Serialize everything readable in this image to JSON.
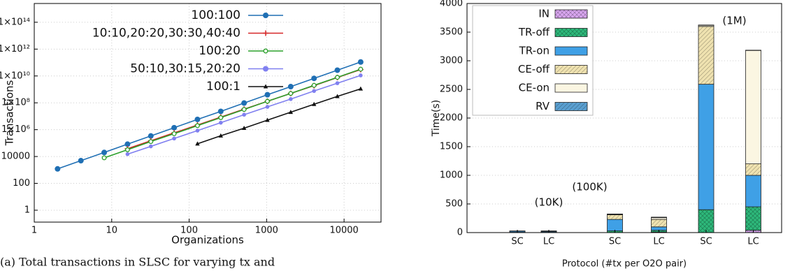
{
  "chart_data": [
    {
      "type": "line",
      "log_x": true,
      "log_y": true,
      "grid": true,
      "x_label": "Organizations",
      "y_label": "Transactions",
      "caption": "(a) Total transactions in SLSC for varying tx and",
      "xlim": [
        1,
        30000
      ],
      "xticks": [
        1,
        10,
        100,
        1000,
        10000
      ],
      "ylim": [
        0.13,
        2500000000000000.0
      ],
      "yticks": [
        1,
        100,
        10000,
        {
          "value": 1000000,
          "label": "1×10⁶"
        },
        {
          "value": 100000000,
          "label": "1×10⁸"
        },
        {
          "value": 10000000000,
          "label": "1×10¹⁰"
        },
        {
          "value": 1000000000000,
          "label": "1×10¹²"
        },
        {
          "value": 100000000000000,
          "label": "1×10¹⁴"
        }
      ],
      "series": [
        {
          "name": "100:100",
          "color": "#1f6fb4",
          "marker": "dot",
          "x": [
            2,
            4,
            8,
            16,
            32,
            64,
            128,
            256,
            512,
            1024,
            2048,
            4096,
            8192,
            16384
          ],
          "values": [
            1200,
            4900,
            20000,
            83000,
            340000,
            1400000,
            5800000,
            23000000,
            96000000,
            400000000,
            1600000000,
            6600000000,
            27000000000,
            110000000000
          ]
        },
        {
          "name": "10:10,20:20,30:30,40:40",
          "color": "#d62728",
          "marker": "plus",
          "x": [
            16,
            32,
            64,
            128,
            256,
            512,
            1024,
            2048,
            4096,
            8192,
            16384
          ],
          "values": [
            38000,
            150000,
            580000,
            2200000,
            8700000,
            34000000,
            130000000,
            500000000,
            1900000000,
            7600000000,
            30000000000
          ]
        },
        {
          "name": "100:20",
          "color": "#2ca02c",
          "marker": "ring",
          "x": [
            8,
            16,
            32,
            64,
            128,
            256,
            512,
            1024,
            2048,
            4096,
            8192,
            16384
          ],
          "values": [
            8000,
            32000,
            130000,
            500000,
            2000000,
            7900000,
            32000000,
            130000000,
            500000000,
            2000000000,
            7900000000,
            32000000000
          ]
        },
        {
          "name": "50:10,30:15,20:20",
          "color": "#8080f0",
          "marker": "dot",
          "x": [
            16,
            32,
            64,
            128,
            256,
            512,
            1024,
            2048,
            4096,
            8192,
            16384
          ],
          "values": [
            15000,
            57000,
            220000,
            850000,
            3300000,
            13000000,
            50000000,
            190000000,
            760000000,
            2900000000,
            11000000000
          ]
        },
        {
          "name": "100:1",
          "color": "#111111",
          "marker": "triangle",
          "x": [
            128,
            256,
            512,
            1024,
            2048,
            4096,
            8192,
            16384
          ],
          "values": [
            89000,
            350000,
            1300000,
            5100000,
            20000000,
            78000000,
            300000000,
            1100000000
          ]
        }
      ]
    },
    {
      "type": "bar",
      "stacked": true,
      "grid": true,
      "x_label": "Protocol (#tx per O2O pair)",
      "y_label": "Time(s)",
      "categories": [
        "SC",
        "LC",
        "SC",
        "LC",
        "SC",
        "LC"
      ],
      "groups": [
        "(10K)",
        "(100K)",
        "(1M)"
      ],
      "ylim": [
        0,
        4000
      ],
      "yticks": [
        0,
        500,
        1000,
        1500,
        2000,
        2500,
        3000,
        3500,
        4000
      ],
      "series": [
        {
          "name": "IN",
          "color": "#d9a6f0",
          "hatch": "cross",
          "values": [
            0,
            0,
            0,
            10,
            0,
            40
          ]
        },
        {
          "name": "TR-off",
          "color": "#2db87a",
          "hatch": "cross",
          "values": [
            5,
            5,
            30,
            30,
            400,
            410
          ]
        },
        {
          "name": "TR-on",
          "color": "#3fa0e6",
          "hatch": "none",
          "values": [
            20,
            15,
            200,
            60,
            2190,
            550
          ]
        },
        {
          "name": "CE-off",
          "color": "#efe2b0",
          "hatch": "diag",
          "values": [
            0,
            5,
            80,
            130,
            1010,
            200
          ]
        },
        {
          "name": "CE-on",
          "color": "#fbf6e2",
          "hatch": "none",
          "values": [
            0,
            0,
            10,
            30,
            20,
            1980
          ]
        },
        {
          "name": "RV",
          "color": "#5a9fd0",
          "hatch": "diag",
          "values": [
            5,
            5,
            5,
            10,
            5,
            5
          ]
        }
      ]
    }
  ]
}
